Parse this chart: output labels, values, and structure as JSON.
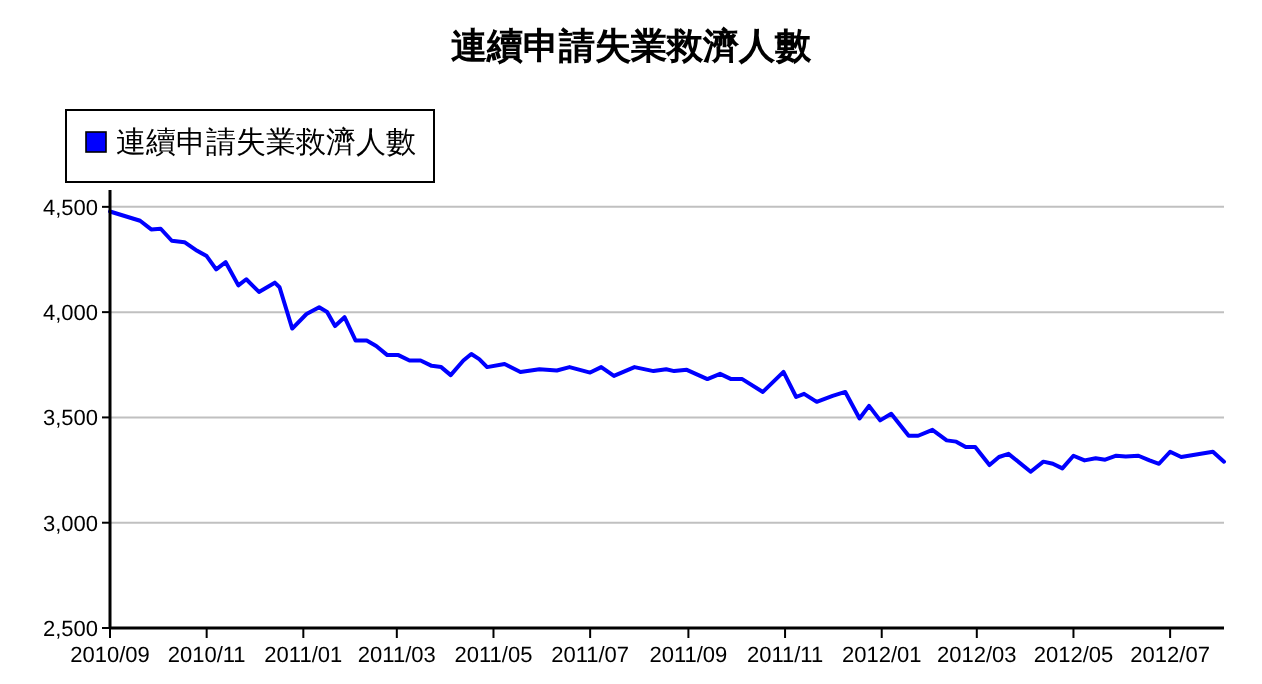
{
  "chart_data": {
    "type": "line",
    "title": "連續申請失業救濟人數",
    "x": [
      "2010-09-01",
      "2010-09-20",
      "2010-09-27",
      "2010-10-03",
      "2010-10-10",
      "2010-10-18",
      "2010-10-26",
      "2010-11-01",
      "2010-11-07",
      "2010-11-13",
      "2010-11-21",
      "2010-11-26",
      "2010-12-04",
      "2010-12-14",
      "2010-12-17",
      "2010-12-25",
      "2011-01-03",
      "2011-01-11",
      "2011-01-16",
      "2011-01-21",
      "2011-01-27",
      "2011-02-03",
      "2011-02-10",
      "2011-02-16",
      "2011-02-23",
      "2011-03-02",
      "2011-03-09",
      "2011-03-16",
      "2011-03-23",
      "2011-03-29",
      "2011-04-04",
      "2011-04-12",
      "2011-04-17",
      "2011-04-22",
      "2011-04-27",
      "2011-05-08",
      "2011-05-18",
      "2011-05-30",
      "2011-06-10",
      "2011-06-18",
      "2011-07-01",
      "2011-07-08",
      "2011-07-16",
      "2011-07-29",
      "2011-08-10",
      "2011-08-18",
      "2011-08-23",
      "2011-08-31",
      "2011-09-13",
      "2011-09-21",
      "2011-09-28",
      "2011-10-05",
      "2011-10-18",
      "2011-10-31",
      "2011-11-08",
      "2011-11-13",
      "2011-11-21",
      "2011-12-01",
      "2011-12-09",
      "2011-12-18",
      "2011-12-24",
      "2011-12-31",
      "2012-01-07",
      "2012-01-18",
      "2012-01-24",
      "2012-02-02",
      "2012-02-11",
      "2012-02-17",
      "2012-02-23",
      "2012-02-29",
      "2012-03-09",
      "2012-03-15",
      "2012-03-21",
      "2012-04-04",
      "2012-04-12",
      "2012-04-18",
      "2012-04-24",
      "2012-05-01",
      "2012-05-08",
      "2012-05-15",
      "2012-05-21",
      "2012-05-28",
      "2012-06-03",
      "2012-06-11",
      "2012-06-18",
      "2012-06-24",
      "2012-07-01",
      "2012-07-08",
      "2012-07-28",
      "2012-08-04"
    ],
    "series": [
      {
        "name": "連續申請失業救濟人數",
        "color": "#0000ff",
        "values": [
          4478,
          4434,
          4393,
          4396,
          4339,
          4332,
          4291,
          4266,
          4203,
          4237,
          4127,
          4156,
          4096,
          4140,
          4118,
          3922,
          3991,
          4023,
          4001,
          3934,
          3976,
          3865,
          3865,
          3839,
          3796,
          3796,
          3770,
          3770,
          3745,
          3739,
          3701,
          3770,
          3801,
          3777,
          3739,
          3754,
          3716,
          3729,
          3723,
          3739,
          3713,
          3739,
          3697,
          3739,
          3720,
          3729,
          3720,
          3726,
          3682,
          3707,
          3682,
          3682,
          3621,
          3716,
          3597,
          3612,
          3574,
          3602,
          3621,
          3495,
          3555,
          3486,
          3517,
          3413,
          3413,
          3441,
          3391,
          3385,
          3360,
          3360,
          3274,
          3312,
          3327,
          3242,
          3290,
          3280,
          3258,
          3318,
          3296,
          3306,
          3299,
          3318,
          3315,
          3318,
          3296,
          3280,
          3337,
          3312,
          3337,
          3290
        ]
      }
    ],
    "xlim": [
      "2010-09-01",
      "2012-08-04"
    ],
    "xticks": [
      {
        "value": "2010-09-01",
        "label": "2010/09"
      },
      {
        "value": "2010-11-01",
        "label": "2010/11"
      },
      {
        "value": "2011-01-01",
        "label": "2011/01"
      },
      {
        "value": "2011-03-01",
        "label": "2011/03"
      },
      {
        "value": "2011-05-01",
        "label": "2011/05"
      },
      {
        "value": "2011-07-01",
        "label": "2011/07"
      },
      {
        "value": "2011-09-01",
        "label": "2011/09"
      },
      {
        "value": "2011-11-01",
        "label": "2011/11"
      },
      {
        "value": "2012-01-01",
        "label": "2012/01"
      },
      {
        "value": "2012-03-01",
        "label": "2012/03"
      },
      {
        "value": "2012-05-01",
        "label": "2012/05"
      },
      {
        "value": "2012-07-01",
        "label": "2012/07"
      }
    ],
    "ylim": [
      2500,
      4580
    ],
    "yticks": [
      {
        "value": 2500,
        "label": "2,500"
      },
      {
        "value": 3000,
        "label": "3,000"
      },
      {
        "value": 3500,
        "label": "3,500"
      },
      {
        "value": 4000,
        "label": "4,000"
      },
      {
        "value": 4500,
        "label": "4,500"
      }
    ],
    "grid": "y",
    "legend": "top left",
    "line_style": "solid"
  }
}
